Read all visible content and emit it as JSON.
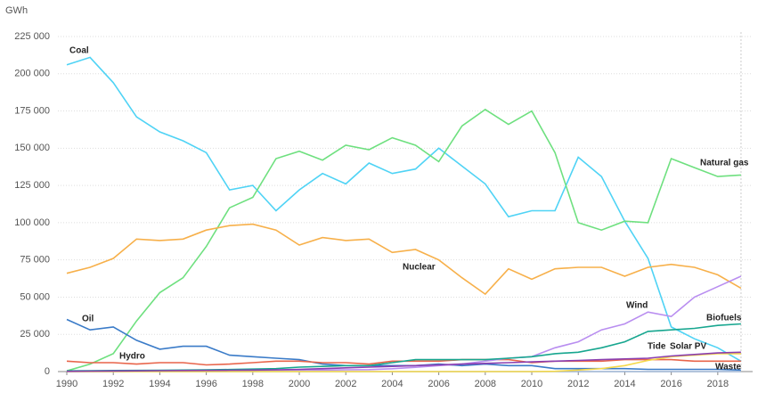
{
  "chart_data": {
    "type": "line",
    "y_label": "GWh",
    "x": [
      1990,
      1991,
      1992,
      1993,
      1994,
      1995,
      1996,
      1997,
      1998,
      1999,
      2000,
      2001,
      2002,
      2003,
      2004,
      2005,
      2006,
      2007,
      2008,
      2009,
      2010,
      2011,
      2012,
      2013,
      2014,
      2015,
      2016,
      2017,
      2018,
      2019
    ],
    "xlim": [
      1990,
      2019.5
    ],
    "xticks": [
      1990,
      1992,
      1994,
      1996,
      1998,
      2000,
      2002,
      2004,
      2006,
      2008,
      2010,
      2012,
      2014,
      2016,
      2018
    ],
    "ylim": [
      0,
      225000
    ],
    "yticks": [
      0,
      {
        "value": 25000,
        "label": "25 000"
      },
      {
        "value": 50000,
        "label": "50 000"
      },
      {
        "value": 75000,
        "label": "75 000"
      },
      {
        "value": 100000,
        "label": "100 000"
      },
      {
        "value": 125000,
        "label": "125 000"
      },
      {
        "value": 150000,
        "label": "150 000"
      },
      {
        "value": 175000,
        "label": "175 000"
      },
      {
        "value": 200000,
        "label": "200 000"
      },
      {
        "value": 225000,
        "label": "225 000"
      }
    ],
    "grid": true,
    "series": [
      {
        "name": "Coal",
        "color": "#4fd3f5",
        "values": [
          206000,
          211000,
          194000,
          171000,
          161000,
          155000,
          147000,
          122000,
          125000,
          108000,
          122000,
          133000,
          126000,
          140000,
          133000,
          136000,
          150000,
          138000,
          126000,
          104000,
          108000,
          108000,
          144000,
          131000,
          101000,
          76000,
          30000,
          22000,
          16000,
          7000
        ]
      },
      {
        "name": "Natural gas",
        "color": "#6ee07f",
        "values": [
          500,
          5000,
          12000,
          34000,
          53000,
          63000,
          84000,
          110000,
          117000,
          143000,
          148000,
          142000,
          152000,
          149000,
          157000,
          152000,
          141000,
          165000,
          176000,
          166000,
          175000,
          147000,
          100000,
          95000,
          101000,
          100000,
          143000,
          137000,
          131000,
          132000
        ]
      },
      {
        "name": "Nuclear",
        "color": "#f7b04a",
        "values": [
          66000,
          70000,
          76000,
          89000,
          88000,
          89000,
          95000,
          98000,
          99000,
          95000,
          85000,
          90000,
          88000,
          89000,
          80000,
          82000,
          75000,
          63000,
          52000,
          69000,
          62000,
          69000,
          70000,
          70000,
          64000,
          70000,
          72000,
          70000,
          65000,
          56000
        ]
      },
      {
        "name": "Oil",
        "color": "#3a7bc8",
        "values": [
          35000,
          28000,
          30000,
          21000,
          15000,
          17000,
          17000,
          11000,
          10000,
          9000,
          8000,
          5000,
          4000,
          4000,
          4000,
          4000,
          5000,
          4000,
          5000,
          4000,
          4000,
          2000,
          2000,
          2000,
          2000,
          1500,
          1500,
          1500,
          1500,
          1000
        ]
      },
      {
        "name": "Hydro",
        "color": "#e8644a",
        "values": [
          7000,
          6000,
          6000,
          5000,
          6000,
          6000,
          4500,
          5000,
          6000,
          7000,
          7000,
          6000,
          6000,
          5000,
          7000,
          7000,
          7000,
          8000,
          8000,
          8000,
          6000,
          7000,
          7000,
          7000,
          8000,
          8000,
          8000,
          7000,
          7000,
          7000
        ]
      },
      {
        "name": "Wind",
        "color": "#b98ef0",
        "values": [
          0,
          0,
          0,
          200,
          300,
          400,
          500,
          600,
          800,
          900,
          1000,
          1000,
          1200,
          1300,
          1900,
          2900,
          4000,
          5000,
          7000,
          9000,
          10000,
          16000,
          20000,
          28000,
          32000,
          40000,
          37000,
          50000,
          57000,
          64000
        ]
      },
      {
        "name": "Biofuels",
        "color": "#17a68f",
        "values": [
          500,
          600,
          700,
          800,
          900,
          1000,
          1200,
          1400,
          1700,
          2000,
          3000,
          3500,
          4000,
          4000,
          6000,
          8000,
          8000,
          8000,
          8000,
          9000,
          10000,
          12000,
          13000,
          16000,
          20000,
          27000,
          28000,
          29000,
          31000,
          32000
        ]
      },
      {
        "name": "Tide",
        "color": "#9ab0d0",
        "values": [
          0,
          0,
          0,
          0,
          0,
          0,
          0,
          0,
          0,
          0,
          0,
          0,
          0,
          0,
          0,
          0,
          0,
          0,
          0,
          0,
          0,
          0,
          0,
          0,
          0,
          0,
          0,
          0,
          0,
          0
        ]
      },
      {
        "name": "Solar PV",
        "color": "#f5d94a",
        "values": [
          0,
          0,
          0,
          0,
          0,
          0,
          0,
          0,
          0,
          0,
          0,
          0,
          0,
          0,
          0,
          0,
          0,
          0,
          0,
          0,
          0,
          200,
          1000,
          2000,
          4000,
          7500,
          10000,
          11000,
          12000,
          12000
        ]
      },
      {
        "name": "Waste",
        "color": "#8a3fb0",
        "values": [
          200,
          300,
          400,
          500,
          600,
          700,
          800,
          900,
          1000,
          1200,
          1500,
          2000,
          2500,
          3000,
          3500,
          4000,
          4500,
          5000,
          5500,
          6000,
          6500,
          7000,
          7500,
          8000,
          8500,
          9000,
          10500,
          11500,
          12500,
          13000
        ]
      }
    ]
  }
}
